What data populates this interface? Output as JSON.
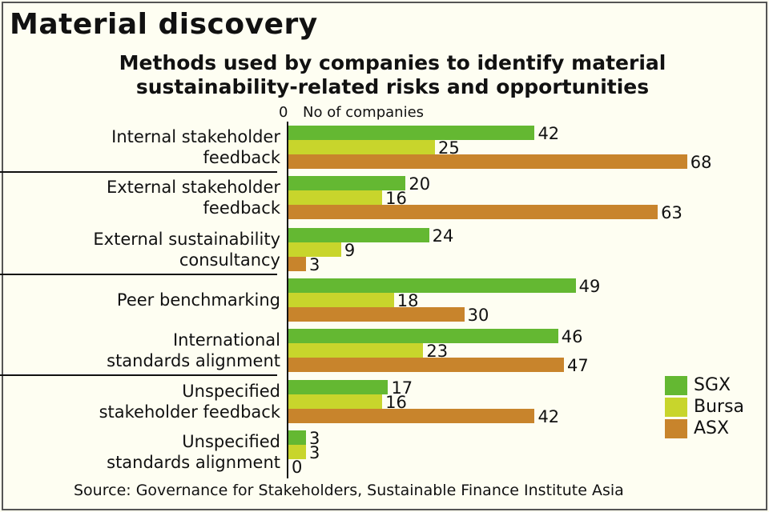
{
  "header": {
    "title": "Material discovery",
    "subtitle_line1": "Methods used by companies to identify material",
    "subtitle_line2": "sustainability-related risks and opportunities"
  },
  "axis": {
    "zero_label": "0",
    "label": "No of companies"
  },
  "legend": [
    {
      "name": "SGX",
      "color": "#64b832"
    },
    {
      "name": "Bursa",
      "color": "#c8d52c"
    },
    {
      "name": "ASX",
      "color": "#c8842c"
    }
  ],
  "source": "Source: Governance for Stakeholders, Sustainable Finance Institute Asia",
  "chart_data": {
    "type": "bar",
    "orientation": "horizontal",
    "title": "Material discovery",
    "subtitle": "Methods used by companies to identify material sustainability-related risks and opportunities",
    "xlabel": "No of companies",
    "ylabel": "",
    "xlim": [
      0,
      70
    ],
    "grid": false,
    "legend_position": "right-bottom",
    "categories": [
      "Internal stakeholder feedback",
      "External stakeholder feedback",
      "External sustainability consultancy",
      "Peer benchmarking",
      "International standards alignment",
      "Unspecified stakeholder feedback",
      "Unspecified standards alignment"
    ],
    "category_lines": [
      [
        "Internal stakeholder",
        "feedback"
      ],
      [
        "External stakeholder",
        "feedback"
      ],
      [
        "External sustainability",
        "consultancy"
      ],
      [
        "Peer benchmarking"
      ],
      [
        "International",
        "standards alignment"
      ],
      [
        "Unspecified",
        "stakeholder feedback"
      ],
      [
        "Unspecified",
        "standards alignment"
      ]
    ],
    "series": [
      {
        "name": "SGX",
        "color": "#64b832",
        "values": [
          42,
          20,
          24,
          49,
          46,
          17,
          3
        ]
      },
      {
        "name": "Bursa",
        "color": "#c8d52c",
        "values": [
          25,
          16,
          9,
          18,
          23,
          16,
          3
        ]
      },
      {
        "name": "ASX",
        "color": "#c8842c",
        "values": [
          68,
          63,
          3,
          30,
          47,
          42,
          0
        ]
      }
    ],
    "annotations": "Values labelled at end of each bar",
    "source": "Governance for Stakeholders, Sustainable Finance Institute Asia"
  }
}
